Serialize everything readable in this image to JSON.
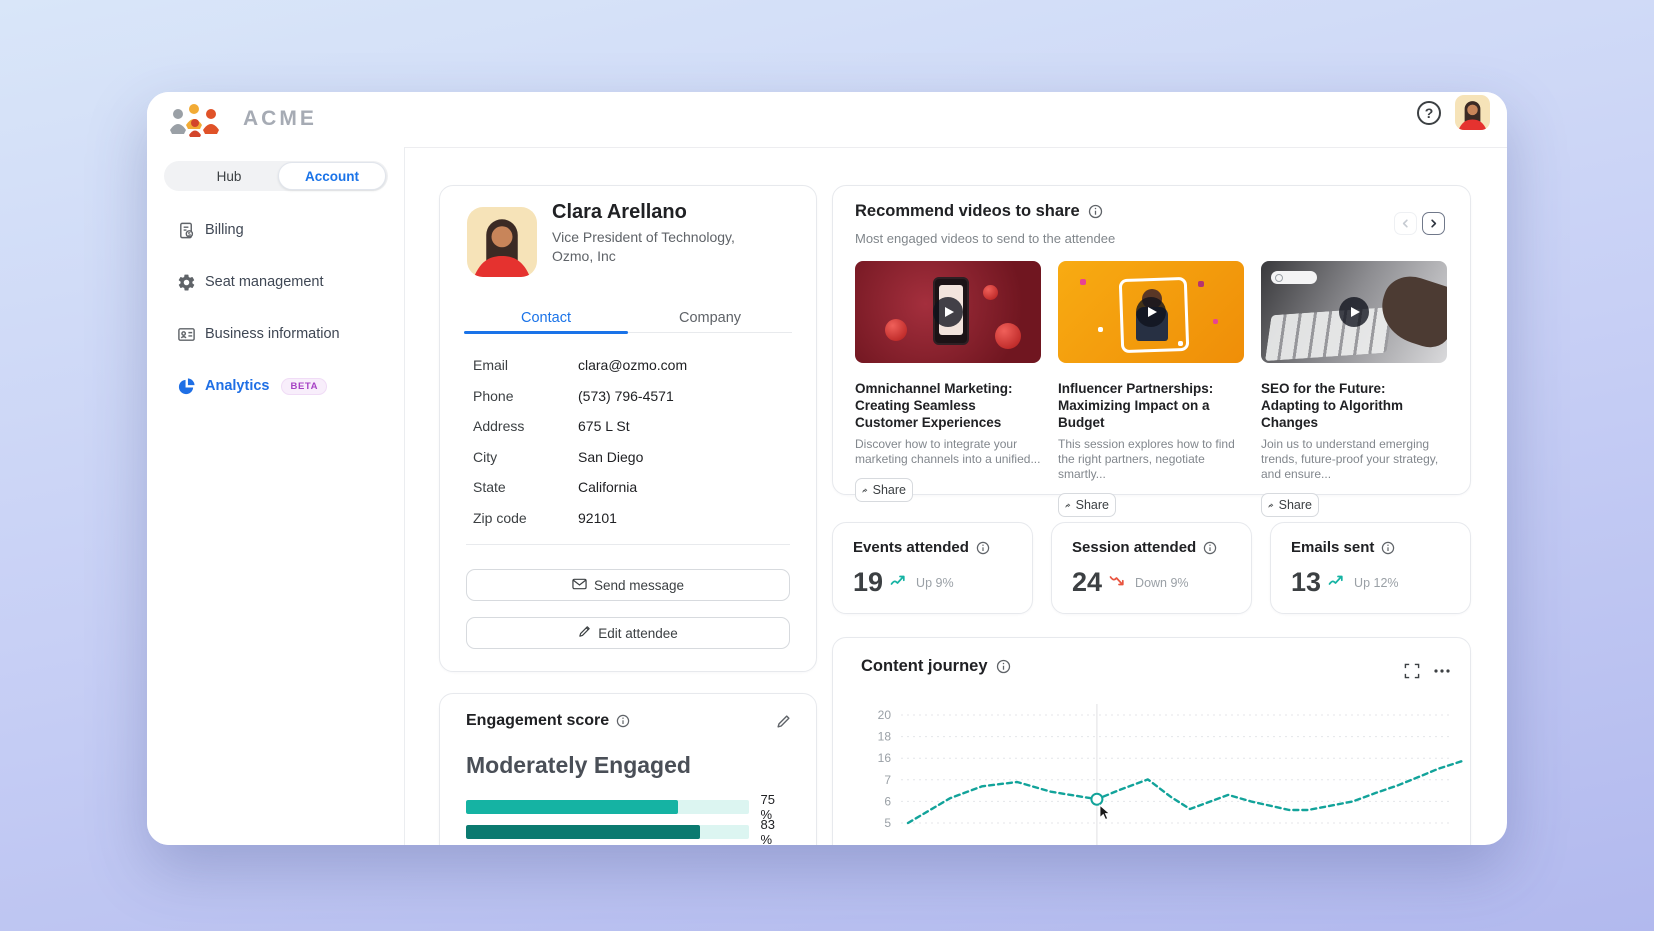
{
  "app": {
    "brand": "ACME"
  },
  "topbar": {
    "help": "?"
  },
  "sidebar": {
    "segmented": {
      "options": [
        "Hub",
        "Account"
      ],
      "active": "Account"
    },
    "items": [
      {
        "label": "Billing",
        "icon": "receipt-icon"
      },
      {
        "label": "Seat management",
        "icon": "gear-icon"
      },
      {
        "label": "Business information",
        "icon": "id-card-icon"
      },
      {
        "label": "Analytics",
        "icon": "pie-chart-icon",
        "active": true,
        "badge": "BETA"
      }
    ]
  },
  "profile": {
    "name": "Clara Arellano",
    "title_line1": "Vice President of Technology,",
    "title_line2": "Ozmo, Inc",
    "tabs": [
      "Contact",
      "Company"
    ],
    "active_tab": "Contact",
    "fields": [
      {
        "label": "Email",
        "value": "clara@ozmo.com"
      },
      {
        "label": "Phone",
        "value": "(573) 796-4571"
      },
      {
        "label": "Address",
        "value": "675 L St"
      },
      {
        "label": "City",
        "value": "San Diego"
      },
      {
        "label": "State",
        "value": "California"
      },
      {
        "label": "Zip code",
        "value": "92101"
      }
    ],
    "actions": {
      "send": "Send message",
      "edit": "Edit attendee"
    }
  },
  "engagement": {
    "title": "Engagement score",
    "level": "Moderately Engaged",
    "bars": [
      {
        "percent": 75,
        "label": "75 %",
        "color": "#15b3a3"
      },
      {
        "percent": 83,
        "label": "83 %",
        "color": "#0b7a70"
      }
    ]
  },
  "videos": {
    "title": "Recommend videos to share",
    "subtitle": "Most engaged videos to send to the attendee",
    "items": [
      {
        "title": "Omnichannel Marketing: Creating Seamless Customer Experiences",
        "description": "Discover how to integrate your marketing channels into a unified...",
        "share_label": "Share",
        "thumb": "smartphone-ornaments-red"
      },
      {
        "title": "Influencer Partnerships: Maximizing Impact on a Budget",
        "description": "This session explores how to find the right partners, negotiate smartly...",
        "share_label": "Share",
        "thumb": "influencer-orange"
      },
      {
        "title": "SEO for the Future: Adapting to Algorithm Changes",
        "description": "Join us to understand emerging trends, future-proof your strategy, and ensure...",
        "share_label": "Share",
        "thumb": "keyboard-hand-grayscale"
      }
    ]
  },
  "stats": [
    {
      "title": "Events attended",
      "value": "19",
      "trend": "up",
      "trend_label": "Up 9%"
    },
    {
      "title": "Session attended",
      "value": "24",
      "trend": "down",
      "trend_label": "Down 9%"
    },
    {
      "title": "Emails sent",
      "value": "13",
      "trend": "up",
      "trend_label": "Up 12%"
    }
  ],
  "journey": {
    "title": "Content journey"
  },
  "chart_data": {
    "type": "line",
    "title": "Content journey",
    "style": "dashed",
    "color": "#12a39a",
    "grid": true,
    "legend": "none",
    "y_ticks_top_to_bottom": [
      20,
      18,
      16,
      7,
      6,
      5
    ],
    "highlight_index": 5,
    "points": [
      {
        "x_frac": 0.0,
        "value": 5.0
      },
      {
        "x_frac": 0.076,
        "value": 6.15
      },
      {
        "x_frac": 0.134,
        "value": 6.7
      },
      {
        "x_frac": 0.197,
        "value": 6.9
      },
      {
        "x_frac": 0.258,
        "value": 6.45
      },
      {
        "x_frac": 0.341,
        "value": 6.1
      },
      {
        "x_frac": 0.384,
        "value": 6.55
      },
      {
        "x_frac": 0.433,
        "value": 7.15
      },
      {
        "x_frac": 0.475,
        "value": 6.2
      },
      {
        "x_frac": 0.509,
        "value": 5.65
      },
      {
        "x_frac": 0.578,
        "value": 6.3
      },
      {
        "x_frac": 0.619,
        "value": 6.0
      },
      {
        "x_frac": 0.688,
        "value": 5.6
      },
      {
        "x_frac": 0.722,
        "value": 5.6
      },
      {
        "x_frac": 0.763,
        "value": 5.8
      },
      {
        "x_frac": 0.803,
        "value": 6.0
      },
      {
        "x_frac": 0.845,
        "value": 6.4
      },
      {
        "x_frac": 0.885,
        "value": 6.75
      },
      {
        "x_frac": 0.925,
        "value": 8.5
      },
      {
        "x_frac": 0.956,
        "value": 11.5
      },
      {
        "x_frac": 1.0,
        "value": 14.8
      }
    ]
  },
  "colors": {
    "accent_blue": "#1a73e8",
    "teal": "#15b3a3",
    "dark_teal": "#0b7a70",
    "trend_red": "#e8543f",
    "beta_purple": "#a643c4"
  }
}
